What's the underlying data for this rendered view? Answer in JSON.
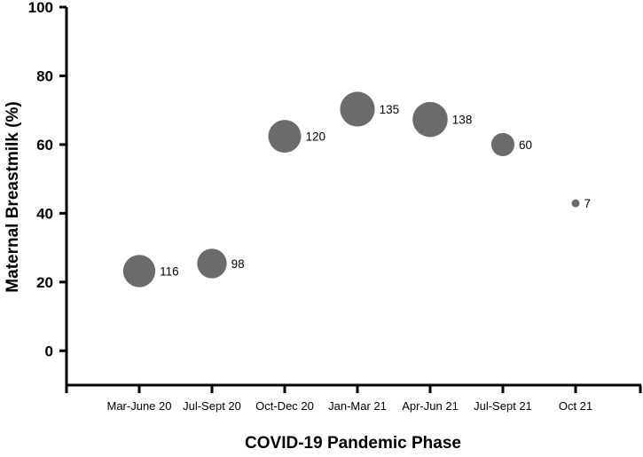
{
  "chart_data": {
    "type": "bubble",
    "title": "",
    "xlabel": "COVID-19 Pandemic Phase",
    "ylabel": "Maternal Breastmilk (%)",
    "ylim": [
      -10,
      100
    ],
    "yticks": [
      0,
      20,
      40,
      60,
      80,
      100
    ],
    "grid": false,
    "legend": "none",
    "color": "#6b6b6b",
    "categories": [
      "Mar-June 20",
      "Jul-Sept 20",
      "Oct-Dec 20",
      "Jan-Mar 21",
      "Apr-Jun 21",
      "Jul-Sept 21",
      "Oct 21"
    ],
    "values": [
      23.2,
      25.4,
      62.4,
      70.3,
      67.3,
      60.0,
      42.9
    ],
    "sizes": [
      116,
      98,
      120,
      135,
      138,
      60,
      7
    ],
    "labels": [
      "116",
      "98",
      "120",
      "135",
      "138",
      "60",
      "7"
    ]
  }
}
